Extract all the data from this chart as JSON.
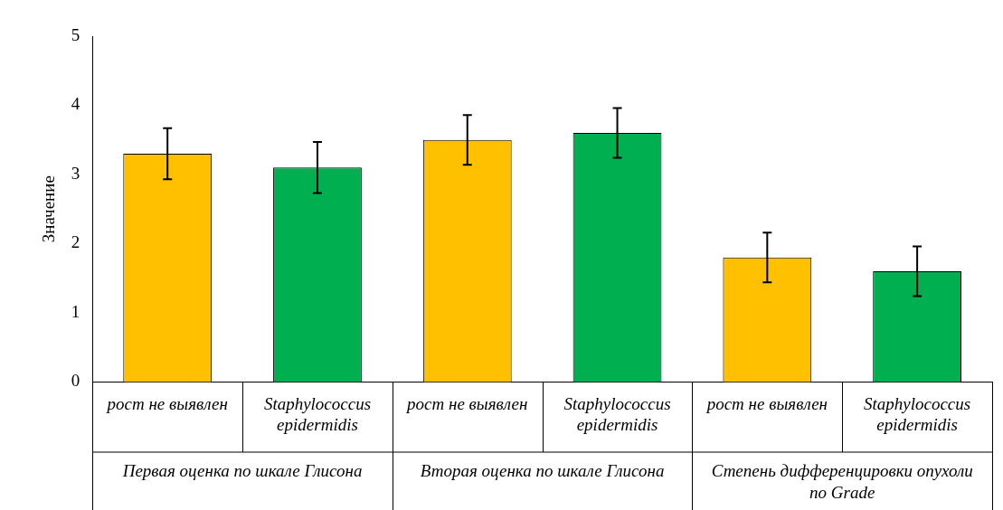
{
  "chart_data": {
    "type": "bar",
    "ylabel": "Значение",
    "categories": [
      "рост не выявлен",
      "Staphylococcus epidermidis",
      "рост не выявлен",
      "Staphylococcus epidermidis",
      "рост не выявлен",
      "Staphylococcus epidermidis"
    ],
    "values": [
      3.3,
      3.1,
      3.5,
      3.6,
      1.8,
      1.6
    ],
    "errors": [
      0.37,
      0.37,
      0.36,
      0.36,
      0.36,
      0.36
    ],
    "colors": [
      "#ffc000",
      "#00b050",
      "#ffc000",
      "#00b050",
      "#ffc000",
      "#00b050"
    ],
    "ylim": [
      0,
      5
    ],
    "yticks": [
      0,
      1,
      2,
      3,
      4,
      5
    ],
    "annotations": [
      "Первая оценка по шкале Глисона",
      "Вторая оценка по шкале Глисона",
      "Степень дифференцировки опухоли по Grade"
    ],
    "grid": false,
    "legend": false
  }
}
